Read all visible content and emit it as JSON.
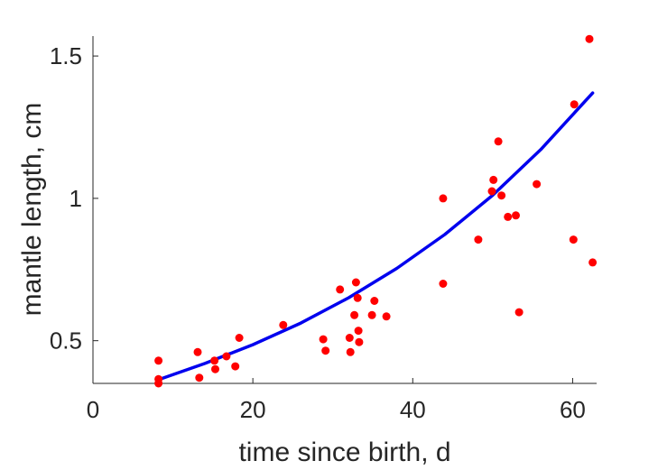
{
  "chart_data": {
    "type": "scatter",
    "title": "",
    "xlabel": "time since birth, d",
    "ylabel": "mantle length, cm",
    "xlim": [
      0,
      63
    ],
    "ylim": [
      0.35,
      1.57
    ],
    "xticks": [
      0,
      20,
      40,
      60
    ],
    "xtick_labels": [
      "0",
      "20",
      "40",
      "60"
    ],
    "yticks": [
      0.5,
      1,
      1.5
    ],
    "ytick_labels": [
      "0.5",
      "1",
      "1.5"
    ],
    "grid": false,
    "legend": "none",
    "series": [
      {
        "type": "scatter",
        "color": "#ff0000",
        "points": [
          [
            8.2,
            0.43
          ],
          [
            8.2,
            0.365
          ],
          [
            8.2,
            0.35
          ],
          [
            13.1,
            0.46
          ],
          [
            13.3,
            0.37
          ],
          [
            15.2,
            0.43
          ],
          [
            15.3,
            0.4
          ],
          [
            16.7,
            0.445
          ],
          [
            17.8,
            0.41
          ],
          [
            18.3,
            0.51
          ],
          [
            23.8,
            0.555
          ],
          [
            28.8,
            0.505
          ],
          [
            29.1,
            0.465
          ],
          [
            30.9,
            0.68
          ],
          [
            32.1,
            0.51
          ],
          [
            32.2,
            0.46
          ],
          [
            32.7,
            0.59
          ],
          [
            32.9,
            0.705
          ],
          [
            33.1,
            0.65
          ],
          [
            33.2,
            0.535
          ],
          [
            33.3,
            0.495
          ],
          [
            34.9,
            0.59
          ],
          [
            35.2,
            0.64
          ],
          [
            36.7,
            0.585
          ],
          [
            43.8,
            1.0
          ],
          [
            43.8,
            0.7
          ],
          [
            48.2,
            0.855
          ],
          [
            49.9,
            1.025
          ],
          [
            50.1,
            1.065
          ],
          [
            50.7,
            1.2
          ],
          [
            51.1,
            1.01
          ],
          [
            51.9,
            0.935
          ],
          [
            52.9,
            0.94
          ],
          [
            53.3,
            0.6
          ],
          [
            55.5,
            1.05
          ],
          [
            60.1,
            0.855
          ],
          [
            60.2,
            1.33
          ],
          [
            62.1,
            1.56
          ],
          [
            62.5,
            0.775
          ]
        ]
      },
      {
        "type": "line",
        "color": "#0000ee",
        "x": [
          8.2,
          14,
          20,
          26,
          32,
          38,
          44,
          50,
          56,
          62.5
        ],
        "y": [
          0.363,
          0.42,
          0.486,
          0.562,
          0.651,
          0.754,
          0.873,
          1.011,
          1.171,
          1.37
        ]
      }
    ]
  }
}
